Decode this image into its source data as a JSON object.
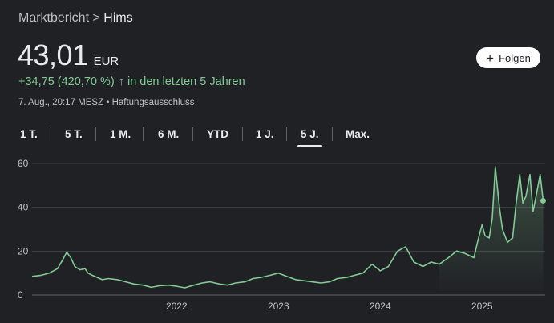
{
  "breadcrumb": {
    "parent": "Marktbericht",
    "separator": " > ",
    "current": "Hims"
  },
  "quote": {
    "price": "43,01",
    "currency": "EUR",
    "change": "+34,75 (420,70 %)",
    "change_arrow": "↑",
    "period_text": "in den letzten 5 Jahren",
    "timestamp": "7. Aug., 20:17 MESZ",
    "disclaimer": "Haftungsausschluss"
  },
  "follow_button": {
    "icon": "plus-icon",
    "label": "Folgen"
  },
  "range_tabs": [
    "1 T.",
    "5 T.",
    "1 M.",
    "6 M.",
    "YTD",
    "1 J.",
    "5 J.",
    "Max."
  ],
  "active_tab": "5 J.",
  "colors": {
    "background": "#202124",
    "positive": "#81c995",
    "grid": "#3c4043"
  },
  "chart_data": {
    "type": "line",
    "ylim": [
      0,
      60
    ],
    "yticks": [
      0,
      20,
      40,
      60
    ],
    "xticks": [
      "2022",
      "2023",
      "2024",
      "2025"
    ],
    "grid": true,
    "x": [
      2020.58,
      2020.67,
      2020.75,
      2020.83,
      2020.88,
      2020.92,
      2020.96,
      2021.0,
      2021.05,
      2021.1,
      2021.13,
      2021.17,
      2021.22,
      2021.27,
      2021.33,
      2021.42,
      2021.5,
      2021.58,
      2021.67,
      2021.75,
      2021.83,
      2021.92,
      2022.0,
      2022.08,
      2022.17,
      2022.25,
      2022.33,
      2022.42,
      2022.5,
      2022.58,
      2022.67,
      2022.75,
      2022.83,
      2022.92,
      2023.0,
      2023.08,
      2023.17,
      2023.25,
      2023.33,
      2023.42,
      2023.5,
      2023.58,
      2023.67,
      2023.75,
      2023.83,
      2023.92,
      2024.0,
      2024.08,
      2024.17,
      2024.25,
      2024.33,
      2024.42,
      2024.5,
      2024.58,
      2024.67,
      2024.75,
      2024.83,
      2024.92,
      2024.96,
      2025.0,
      2025.03,
      2025.07,
      2025.1,
      2025.13,
      2025.17,
      2025.2,
      2025.25,
      2025.3,
      2025.33,
      2025.37,
      2025.4,
      2025.43,
      2025.47,
      2025.5,
      2025.53,
      2025.57,
      2025.6
    ],
    "y": [
      8.5,
      9,
      10,
      12,
      16,
      19.5,
      17,
      13,
      11.5,
      12,
      10,
      9,
      8,
      7,
      7.5,
      7,
      6,
      5,
      4.5,
      3.5,
      4.2,
      4.5,
      4,
      3.3,
      4.5,
      5.5,
      6,
      5,
      4.5,
      5.5,
      6,
      7.5,
      8,
      9,
      10,
      8.5,
      7,
      6.5,
      6,
      5.5,
      6,
      7.5,
      8,
      9,
      10,
      14,
      11,
      13,
      20,
      22,
      15,
      13,
      15,
      14,
      17,
      20,
      19,
      17,
      25,
      32,
      27,
      26,
      35,
      58.5,
      40,
      30,
      24,
      26,
      40,
      55,
      42,
      45,
      55,
      38,
      45,
      55,
      43.01
    ]
  }
}
